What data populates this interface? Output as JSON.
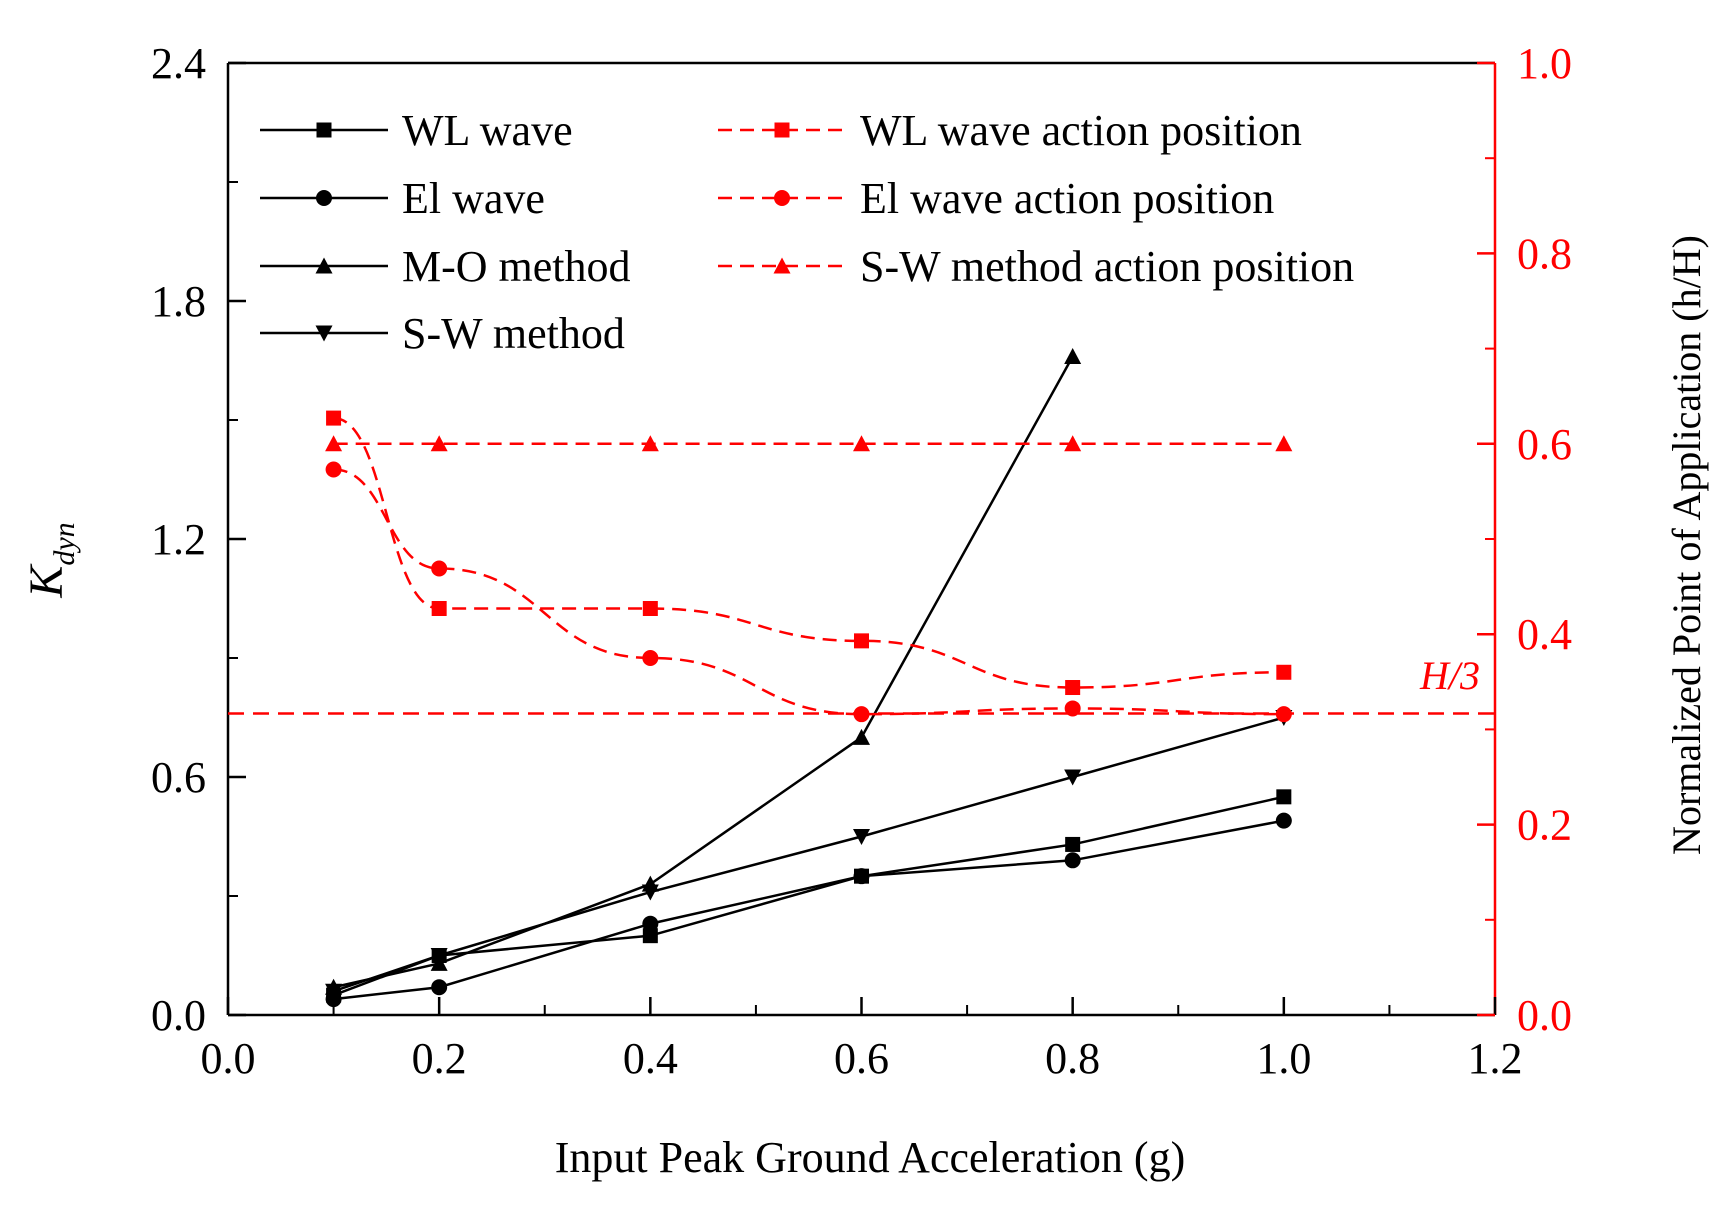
{
  "colors": {
    "black_series": "#000000",
    "red_series": "#ff0000",
    "axis_left": "#000000",
    "axis_right": "#ff0000"
  },
  "chart_data": {
    "type": "line",
    "xlabel": "Input Peak Ground Acceleration (g)",
    "ylabel_main": "K",
    "ylabel_sub": "dyn",
    "y2label": "Normalized Point of Application (h/H)",
    "xlim": [
      0.0,
      1.2
    ],
    "ylim": [
      0.0,
      2.4
    ],
    "y2lim": [
      0.0,
      1.0
    ],
    "x_ticks": [
      "0.0",
      "0.2",
      "0.4",
      "0.6",
      "0.8",
      "1.0",
      "1.2"
    ],
    "y_ticks": [
      "0.0",
      "0.6",
      "1.2",
      "1.8",
      "2.4"
    ],
    "y2_ticks": [
      "0.0",
      "0.2",
      "0.4",
      "0.6",
      "0.8",
      "1.0"
    ],
    "legend_position": "top",
    "grid": false,
    "series": [
      {
        "name": "WL wave",
        "axis": "left",
        "marker": "square",
        "color": "#000000",
        "dashed": false,
        "x": [
          0.1,
          0.2,
          0.4,
          0.6,
          0.8,
          1.0
        ],
        "y": [
          0.05,
          0.15,
          0.2,
          0.35,
          0.43,
          0.55
        ]
      },
      {
        "name": "El wave",
        "axis": "left",
        "marker": "circle",
        "color": "#000000",
        "dashed": false,
        "x": [
          0.1,
          0.2,
          0.4,
          0.6,
          0.8,
          1.0
        ],
        "y": [
          0.04,
          0.07,
          0.23,
          0.35,
          0.39,
          0.49
        ]
      },
      {
        "name": "M-O method",
        "axis": "left",
        "marker": "triangle-up",
        "color": "#000000",
        "dashed": false,
        "x": [
          0.1,
          0.2,
          0.4,
          0.6,
          0.8
        ],
        "y": [
          0.07,
          0.13,
          0.33,
          0.7,
          1.66
        ]
      },
      {
        "name": "S-W method",
        "axis": "left",
        "marker": "triangle-down",
        "color": "#000000",
        "dashed": false,
        "x": [
          0.1,
          0.2,
          0.4,
          0.6,
          0.8,
          1.0
        ],
        "y": [
          0.06,
          0.15,
          0.31,
          0.45,
          0.6,
          0.75
        ]
      },
      {
        "name": "WL wave action position",
        "axis": "right",
        "marker": "square",
        "color": "#ff0000",
        "dashed": true,
        "x": [
          0.1,
          0.2,
          0.4,
          0.6,
          0.8,
          1.0
        ],
        "y": [
          0.627,
          0.427,
          0.427,
          0.393,
          0.344,
          0.36
        ]
      },
      {
        "name": "El wave action position",
        "axis": "right",
        "marker": "circle",
        "color": "#ff0000",
        "dashed": true,
        "x": [
          0.1,
          0.2,
          0.4,
          0.6,
          0.8,
          1.0
        ],
        "y": [
          0.573,
          0.469,
          0.375,
          0.316,
          0.322,
          0.316
        ]
      },
      {
        "name": "S-W method action position",
        "axis": "right",
        "marker": "triangle-up",
        "color": "#ff0000",
        "dashed": true,
        "x": [
          0.1,
          0.2,
          0.4,
          0.6,
          0.8,
          1.0
        ],
        "y": [
          0.6,
          0.6,
          0.6,
          0.6,
          0.6,
          0.6
        ]
      }
    ],
    "reference_line": {
      "label": "H/3",
      "axis": "right",
      "y": 0.3167,
      "color": "#ff0000",
      "dashed": true
    }
  }
}
